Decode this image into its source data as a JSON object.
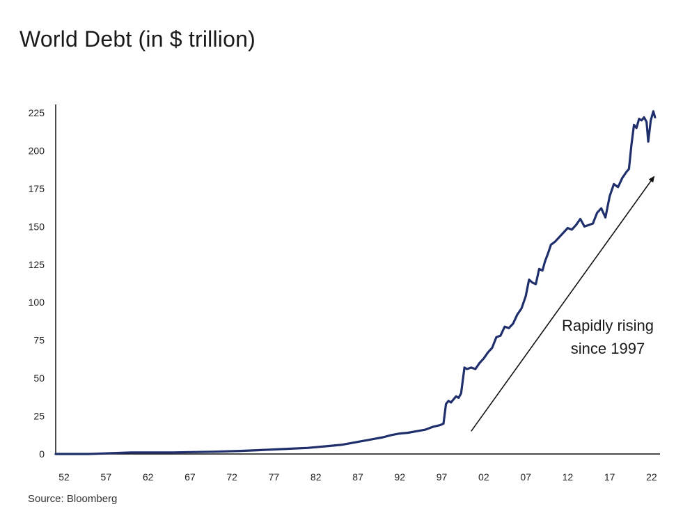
{
  "chart_data": {
    "type": "line",
    "title": "World Debt (in $ trillion)",
    "source": "Source: Bloomberg",
    "xlabel": "",
    "ylabel": "",
    "ylim": [
      0,
      225
    ],
    "xlim": [
      1951,
      2023
    ],
    "yticks": [
      0,
      25,
      50,
      75,
      100,
      125,
      150,
      175,
      200,
      225
    ],
    "xticks": [
      {
        "value": 1952,
        "label": "52"
      },
      {
        "value": 1957,
        "label": "57"
      },
      {
        "value": 1962,
        "label": "62"
      },
      {
        "value": 1967,
        "label": "67"
      },
      {
        "value": 1972,
        "label": "72"
      },
      {
        "value": 1977,
        "label": "77"
      },
      {
        "value": 1982,
        "label": "82"
      },
      {
        "value": 1987,
        "label": "87"
      },
      {
        "value": 1992,
        "label": "92"
      },
      {
        "value": 1997,
        "label": "97"
      },
      {
        "value": 2002,
        "label": "02"
      },
      {
        "value": 2007,
        "label": "07"
      },
      {
        "value": 2012,
        "label": "12"
      },
      {
        "value": 2017,
        "label": "17"
      },
      {
        "value": 2022,
        "label": "22"
      }
    ],
    "grid": false,
    "line_color": "#1f2f6b",
    "series": [
      {
        "x": [
          1951,
          1955,
          1960,
          1965,
          1970,
          1973,
          1975,
          1977,
          1979,
          1981,
          1983,
          1985,
          1986,
          1987,
          1988,
          1989,
          1990,
          1991,
          1992,
          1993,
          1994,
          1995,
          1996,
          1996.8,
          1997.2,
          1997.5,
          1997.8,
          1998.1,
          1998.4,
          1998.7,
          1999.0,
          1999.3,
          1999.7,
          2000.0,
          2000.5,
          2001.0,
          2001.5,
          2002.0,
          2002.5,
          2003.0,
          2003.5,
          2004.0,
          2004.5,
          2005.0,
          2005.5,
          2006.0,
          2006.5,
          2007.0,
          2007.4,
          2007.8,
          2008.2,
          2008.6,
          2009.0,
          2009.3,
          2009.7,
          2010.0,
          2010.5,
          2011.0,
          2011.5,
          2012.0,
          2012.5,
          2013.0,
          2013.5,
          2014.0,
          2014.5,
          2015.0,
          2015.5,
          2016.0,
          2016.5,
          2017.0,
          2017.5,
          2018.0,
          2018.5,
          2019.0,
          2019.3,
          2019.6,
          2019.9,
          2020.2,
          2020.5,
          2020.8,
          2021.1,
          2021.4,
          2021.6,
          2021.9,
          2022.2,
          2022.4
        ],
        "values": [
          0,
          0,
          1,
          1,
          1.5,
          2,
          2.5,
          3,
          3.5,
          4,
          5,
          6,
          7,
          8,
          9,
          10,
          11,
          12.5,
          13.5,
          14,
          15,
          16,
          18,
          19,
          20,
          33,
          35,
          34,
          36,
          38,
          37,
          40,
          57,
          56,
          57,
          56,
          60,
          63,
          67,
          70,
          77,
          78,
          84,
          83,
          86,
          92,
          96,
          104,
          115,
          113,
          112,
          122,
          121,
          127,
          133,
          138,
          140,
          143,
          146,
          149,
          148,
          151,
          155,
          150,
          151,
          152,
          159,
          162,
          156,
          170,
          178,
          176,
          182,
          186,
          188,
          204,
          217,
          215,
          221,
          220,
          222,
          219,
          206,
          220,
          226,
          222
        ]
      }
    ],
    "annotation": {
      "line1": "Rapidly rising",
      "line2": "since 1997"
    },
    "arrow": {
      "from": [
        2000.5,
        15
      ],
      "to": [
        2022.3,
        183
      ]
    }
  }
}
